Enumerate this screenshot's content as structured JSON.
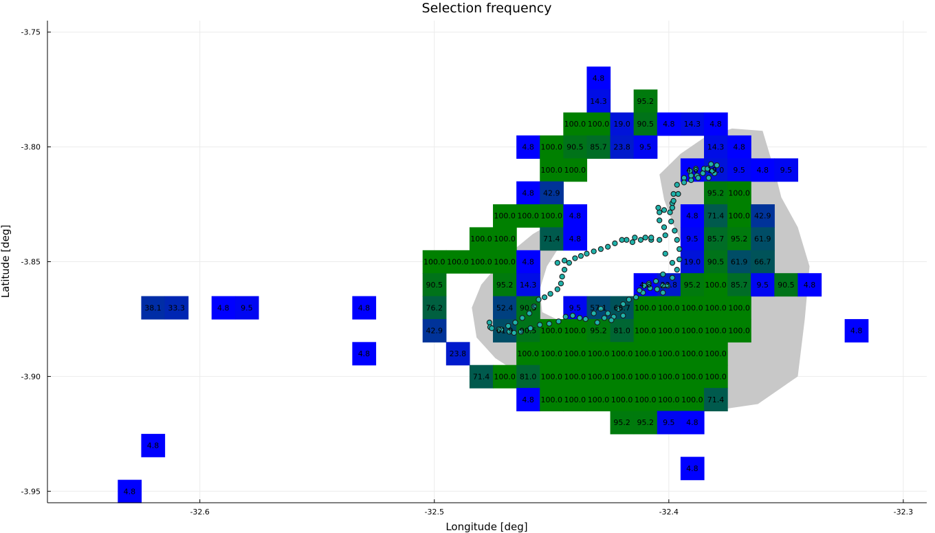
{
  "chart_data": {
    "type": "heatmap",
    "title": "Selection frequency",
    "xlabel": "Longitude [deg]",
    "ylabel": "Latitude [deg]",
    "xlim": [
      -32.665,
      -32.29
    ],
    "ylim": [
      -3.955,
      -3.745
    ],
    "grid": true,
    "legend": "none",
    "x_ticks": [
      {
        "v": -32.6,
        "label": "-32.6"
      },
      {
        "v": -32.5,
        "label": "-32.5"
      },
      {
        "v": -32.4,
        "label": "-32.4"
      },
      {
        "v": -32.3,
        "label": "-32.3"
      }
    ],
    "y_ticks": [
      {
        "v": -3.75,
        "label": "-3.75"
      },
      {
        "v": -3.8,
        "label": "-3.80"
      },
      {
        "v": -3.85,
        "label": "-3.85"
      },
      {
        "v": -3.9,
        "label": "-3.90"
      },
      {
        "v": -3.95,
        "label": "-3.95"
      }
    ],
    "cell_size_deg": 0.01,
    "colors": {
      "low": "#0000ff",
      "high": "#008000",
      "island": "#c8c8c8",
      "track_fill": "#20b2aa",
      "track_edge": "#1a1a1a",
      "grid": "#ebebeb"
    },
    "cells": [
      {
        "lon": -32.43,
        "lat": -3.77,
        "value": "4.8"
      },
      {
        "lon": -32.43,
        "lat": -3.78,
        "value": "14.3"
      },
      {
        "lon": -32.41,
        "lat": -3.78,
        "value": "95.2"
      },
      {
        "lon": -32.44,
        "lat": -3.79,
        "value": "100.0"
      },
      {
        "lon": -32.43,
        "lat": -3.79,
        "value": "100.0"
      },
      {
        "lon": -32.42,
        "lat": -3.79,
        "value": "19.0"
      },
      {
        "lon": -32.41,
        "lat": -3.79,
        "value": "90.5"
      },
      {
        "lon": -32.4,
        "lat": -3.79,
        "value": "4.8"
      },
      {
        "lon": -32.39,
        "lat": -3.79,
        "value": "14.3"
      },
      {
        "lon": -32.38,
        "lat": -3.79,
        "value": "4.8"
      },
      {
        "lon": -32.46,
        "lat": -3.8,
        "value": "4.8"
      },
      {
        "lon": -32.45,
        "lat": -3.8,
        "value": "100.0"
      },
      {
        "lon": -32.44,
        "lat": -3.8,
        "value": "90.5"
      },
      {
        "lon": -32.43,
        "lat": -3.8,
        "value": "85.7"
      },
      {
        "lon": -32.42,
        "lat": -3.8,
        "value": "23.8"
      },
      {
        "lon": -32.41,
        "lat": -3.8,
        "value": "9.5"
      },
      {
        "lon": -32.38,
        "lat": -3.8,
        "value": "14.3"
      },
      {
        "lon": -32.37,
        "lat": -3.8,
        "value": "4.8"
      },
      {
        "lon": -32.45,
        "lat": -3.81,
        "value": "100.0"
      },
      {
        "lon": -32.44,
        "lat": -3.81,
        "value": "100.0"
      },
      {
        "lon": -32.39,
        "lat": -3.81,
        "value": "4.8"
      },
      {
        "lon": -32.38,
        "lat": -3.81,
        "value": "19.0"
      },
      {
        "lon": -32.37,
        "lat": -3.81,
        "value": "9.5"
      },
      {
        "lon": -32.36,
        "lat": -3.81,
        "value": "4.8"
      },
      {
        "lon": -32.35,
        "lat": -3.81,
        "value": "9.5"
      },
      {
        "lon": -32.46,
        "lat": -3.82,
        "value": "4.8"
      },
      {
        "lon": -32.45,
        "lat": -3.82,
        "value": "42.9"
      },
      {
        "lon": -32.38,
        "lat": -3.82,
        "value": "95.2"
      },
      {
        "lon": -32.37,
        "lat": -3.82,
        "value": "100.0"
      },
      {
        "lon": -32.47,
        "lat": -3.83,
        "value": "100.0"
      },
      {
        "lon": -32.46,
        "lat": -3.83,
        "value": "100.0"
      },
      {
        "lon": -32.45,
        "lat": -3.83,
        "value": "100.0"
      },
      {
        "lon": -32.44,
        "lat": -3.83,
        "value": "4.8"
      },
      {
        "lon": -32.39,
        "lat": -3.83,
        "value": "4.8"
      },
      {
        "lon": -32.38,
        "lat": -3.83,
        "value": "71.4"
      },
      {
        "lon": -32.37,
        "lat": -3.83,
        "value": "100.0"
      },
      {
        "lon": -32.36,
        "lat": -3.83,
        "value": "42.9"
      },
      {
        "lon": -32.48,
        "lat": -3.84,
        "value": "100.0"
      },
      {
        "lon": -32.47,
        "lat": -3.84,
        "value": "100.0"
      },
      {
        "lon": -32.45,
        "lat": -3.84,
        "value": "71.4"
      },
      {
        "lon": -32.44,
        "lat": -3.84,
        "value": "4.8"
      },
      {
        "lon": -32.39,
        "lat": -3.84,
        "value": "9.5"
      },
      {
        "lon": -32.38,
        "lat": -3.84,
        "value": "85.7"
      },
      {
        "lon": -32.37,
        "lat": -3.84,
        "value": "95.2"
      },
      {
        "lon": -32.36,
        "lat": -3.84,
        "value": "61.9"
      },
      {
        "lon": -32.5,
        "lat": -3.85,
        "value": "100.0"
      },
      {
        "lon": -32.49,
        "lat": -3.85,
        "value": "100.0"
      },
      {
        "lon": -32.48,
        "lat": -3.85,
        "value": "100.0"
      },
      {
        "lon": -32.47,
        "lat": -3.85,
        "value": "100.0"
      },
      {
        "lon": -32.46,
        "lat": -3.85,
        "value": "4.8"
      },
      {
        "lon": -32.39,
        "lat": -3.85,
        "value": "19.0"
      },
      {
        "lon": -32.38,
        "lat": -3.85,
        "value": "90.5"
      },
      {
        "lon": -32.37,
        "lat": -3.85,
        "value": "61.9"
      },
      {
        "lon": -32.36,
        "lat": -3.85,
        "value": "66.7"
      },
      {
        "lon": -32.5,
        "lat": -3.86,
        "value": "90.5"
      },
      {
        "lon": -32.47,
        "lat": -3.86,
        "value": "95.2"
      },
      {
        "lon": -32.46,
        "lat": -3.86,
        "value": "14.3"
      },
      {
        "lon": -32.41,
        "lat": -3.86,
        "value": "4.8"
      },
      {
        "lon": -32.4,
        "lat": -3.86,
        "value": "23.8"
      },
      {
        "lon": -32.39,
        "lat": -3.86,
        "value": "95.2"
      },
      {
        "lon": -32.38,
        "lat": -3.86,
        "value": "100.0"
      },
      {
        "lon": -32.37,
        "lat": -3.86,
        "value": "85.7"
      },
      {
        "lon": -32.36,
        "lat": -3.86,
        "value": "9.5"
      },
      {
        "lon": -32.35,
        "lat": -3.86,
        "value": "90.5"
      },
      {
        "lon": -32.34,
        "lat": -3.86,
        "value": "4.8"
      },
      {
        "lon": -32.62,
        "lat": -3.87,
        "value": "38.1"
      },
      {
        "lon": -32.61,
        "lat": -3.87,
        "value": "33.3"
      },
      {
        "lon": -32.59,
        "lat": -3.87,
        "value": "4.8"
      },
      {
        "lon": -32.58,
        "lat": -3.87,
        "value": "9.5"
      },
      {
        "lon": -32.53,
        "lat": -3.87,
        "value": "4.8"
      },
      {
        "lon": -32.5,
        "lat": -3.87,
        "value": "76.2"
      },
      {
        "lon": -32.47,
        "lat": -3.87,
        "value": "52.4"
      },
      {
        "lon": -32.46,
        "lat": -3.87,
        "value": "90.5"
      },
      {
        "lon": -32.44,
        "lat": -3.87,
        "value": "9.5"
      },
      {
        "lon": -32.43,
        "lat": -3.87,
        "value": "57.1"
      },
      {
        "lon": -32.42,
        "lat": -3.87,
        "value": "66.7"
      },
      {
        "lon": -32.41,
        "lat": -3.87,
        "value": "100.0"
      },
      {
        "lon": -32.4,
        "lat": -3.87,
        "value": "100.0"
      },
      {
        "lon": -32.39,
        "lat": -3.87,
        "value": "100.0"
      },
      {
        "lon": -32.38,
        "lat": -3.87,
        "value": "100.0"
      },
      {
        "lon": -32.37,
        "lat": -3.87,
        "value": "100.0"
      },
      {
        "lon": -32.5,
        "lat": -3.88,
        "value": "42.9"
      },
      {
        "lon": -32.47,
        "lat": -3.88,
        "value": "61.9"
      },
      {
        "lon": -32.46,
        "lat": -3.88,
        "value": "90.5"
      },
      {
        "lon": -32.45,
        "lat": -3.88,
        "value": "100.0"
      },
      {
        "lon": -32.44,
        "lat": -3.88,
        "value": "100.0"
      },
      {
        "lon": -32.43,
        "lat": -3.88,
        "value": "95.2"
      },
      {
        "lon": -32.42,
        "lat": -3.88,
        "value": "81.0"
      },
      {
        "lon": -32.41,
        "lat": -3.88,
        "value": "100.0"
      },
      {
        "lon": -32.4,
        "lat": -3.88,
        "value": "100.0"
      },
      {
        "lon": -32.39,
        "lat": -3.88,
        "value": "100.0"
      },
      {
        "lon": -32.38,
        "lat": -3.88,
        "value": "100.0"
      },
      {
        "lon": -32.37,
        "lat": -3.88,
        "value": "100.0"
      },
      {
        "lon": -32.32,
        "lat": -3.88,
        "value": "4.8"
      },
      {
        "lon": -32.53,
        "lat": -3.89,
        "value": "4.8"
      },
      {
        "lon": -32.49,
        "lat": -3.89,
        "value": "23.8"
      },
      {
        "lon": -32.46,
        "lat": -3.89,
        "value": "100.0"
      },
      {
        "lon": -32.45,
        "lat": -3.89,
        "value": "100.0"
      },
      {
        "lon": -32.44,
        "lat": -3.89,
        "value": "100.0"
      },
      {
        "lon": -32.43,
        "lat": -3.89,
        "value": "100.0"
      },
      {
        "lon": -32.42,
        "lat": -3.89,
        "value": "100.0"
      },
      {
        "lon": -32.41,
        "lat": -3.89,
        "value": "100.0"
      },
      {
        "lon": -32.4,
        "lat": -3.89,
        "value": "100.0"
      },
      {
        "lon": -32.39,
        "lat": -3.89,
        "value": "100.0"
      },
      {
        "lon": -32.38,
        "lat": -3.89,
        "value": "100.0"
      },
      {
        "lon": -32.48,
        "lat": -3.9,
        "value": "71.4"
      },
      {
        "lon": -32.47,
        "lat": -3.9,
        "value": "100.0"
      },
      {
        "lon": -32.46,
        "lat": -3.9,
        "value": "81.0"
      },
      {
        "lon": -32.45,
        "lat": -3.9,
        "value": "100.0"
      },
      {
        "lon": -32.44,
        "lat": -3.9,
        "value": "100.0"
      },
      {
        "lon": -32.43,
        "lat": -3.9,
        "value": "100.0"
      },
      {
        "lon": -32.42,
        "lat": -3.9,
        "value": "100.0"
      },
      {
        "lon": -32.41,
        "lat": -3.9,
        "value": "100.0"
      },
      {
        "lon": -32.4,
        "lat": -3.9,
        "value": "100.0"
      },
      {
        "lon": -32.39,
        "lat": -3.9,
        "value": "100.0"
      },
      {
        "lon": -32.38,
        "lat": -3.9,
        "value": "100.0"
      },
      {
        "lon": -32.46,
        "lat": -3.91,
        "value": "4.8"
      },
      {
        "lon": -32.45,
        "lat": -3.91,
        "value": "100.0"
      },
      {
        "lon": -32.44,
        "lat": -3.91,
        "value": "100.0"
      },
      {
        "lon": -32.43,
        "lat": -3.91,
        "value": "100.0"
      },
      {
        "lon": -32.42,
        "lat": -3.91,
        "value": "100.0"
      },
      {
        "lon": -32.41,
        "lat": -3.91,
        "value": "100.0"
      },
      {
        "lon": -32.4,
        "lat": -3.91,
        "value": "100.0"
      },
      {
        "lon": -32.39,
        "lat": -3.91,
        "value": "100.0"
      },
      {
        "lon": -32.38,
        "lat": -3.91,
        "value": "71.4"
      },
      {
        "lon": -32.42,
        "lat": -3.92,
        "value": "95.2"
      },
      {
        "lon": -32.41,
        "lat": -3.92,
        "value": "95.2"
      },
      {
        "lon": -32.4,
        "lat": -3.92,
        "value": "9.5"
      },
      {
        "lon": -32.39,
        "lat": -3.92,
        "value": "4.8"
      },
      {
        "lon": -32.62,
        "lat": -3.93,
        "value": "4.8"
      },
      {
        "lon": -32.39,
        "lat": -3.94,
        "value": "4.8"
      },
      {
        "lon": -32.63,
        "lat": -3.95,
        "value": "4.8"
      }
    ],
    "island_outline": [
      [
        -32.395,
        -3.803
      ],
      [
        -32.385,
        -3.796
      ],
      [
        -32.373,
        -3.792
      ],
      [
        -32.36,
        -3.793
      ],
      [
        -32.355,
        -3.81
      ],
      [
        -32.352,
        -3.822
      ],
      [
        -32.345,
        -3.835
      ],
      [
        -32.34,
        -3.852
      ],
      [
        -32.342,
        -3.875
      ],
      [
        -32.345,
        -3.9
      ],
      [
        -32.362,
        -3.912
      ],
      [
        -32.382,
        -3.915
      ],
      [
        -32.41,
        -3.917
      ],
      [
        -32.432,
        -3.912
      ],
      [
        -32.448,
        -3.906
      ],
      [
        -32.462,
        -3.9
      ],
      [
        -32.474,
        -3.892
      ],
      [
        -32.482,
        -3.883
      ],
      [
        -32.484,
        -3.87
      ],
      [
        -32.48,
        -3.86
      ],
      [
        -32.47,
        -3.848
      ],
      [
        -32.458,
        -3.838
      ],
      [
        -32.448,
        -3.832
      ],
      [
        -32.44,
        -3.827
      ],
      [
        -32.441,
        -3.837
      ],
      [
        -32.447,
        -3.844
      ],
      [
        -32.452,
        -3.852
      ],
      [
        -32.455,
        -3.862
      ],
      [
        -32.454,
        -3.872
      ],
      [
        -32.446,
        -3.876
      ],
      [
        -32.432,
        -3.875
      ],
      [
        -32.418,
        -3.873
      ],
      [
        -32.405,
        -3.869
      ],
      [
        -32.396,
        -3.864
      ],
      [
        -32.392,
        -3.856
      ],
      [
        -32.393,
        -3.845
      ],
      [
        -32.398,
        -3.834
      ],
      [
        -32.402,
        -3.823
      ],
      [
        -32.404,
        -3.812
      ]
    ],
    "track": [
      [
        -32.4765,
        -3.8765
      ],
      [
        -32.4762,
        -3.8785
      ],
      [
        -32.4715,
        -3.8795
      ],
      [
        -32.468,
        -3.8805
      ],
      [
        -32.466,
        -3.881
      ],
      [
        -32.463,
        -3.8805
      ],
      [
        -32.459,
        -3.879
      ],
      [
        -32.455,
        -3.8775
      ],
      [
        -32.451,
        -3.877
      ],
      [
        -32.447,
        -3.876
      ],
      [
        -32.444,
        -3.874
      ],
      [
        -32.441,
        -3.8735
      ],
      [
        -32.438,
        -3.8745
      ],
      [
        -32.4355,
        -3.875
      ],
      [
        -32.432,
        -3.8725
      ],
      [
        -32.429,
        -3.8705
      ],
      [
        -32.426,
        -3.8725
      ],
      [
        -32.4235,
        -3.874
      ],
      [
        -32.4215,
        -3.8705
      ],
      [
        -32.4195,
        -3.8685
      ],
      [
        -32.417,
        -3.8665
      ],
      [
        -32.414,
        -3.8655
      ],
      [
        -32.411,
        -3.8635
      ],
      [
        -32.408,
        -3.8615
      ],
      [
        -32.405,
        -3.862
      ],
      [
        -32.4025,
        -3.8635
      ],
      [
        -32.4005,
        -3.8605
      ],
      [
        -32.3985,
        -3.857
      ],
      [
        -32.3965,
        -3.8535
      ],
      [
        -32.3955,
        -3.849
      ],
      [
        -32.3955,
        -3.8445
      ],
      [
        -32.3965,
        -3.8405
      ],
      [
        -32.3975,
        -3.8365
      ],
      [
        -32.399,
        -3.8325
      ],
      [
        -32.3995,
        -3.8285
      ],
      [
        -32.3985,
        -3.8245
      ],
      [
        -32.398,
        -3.8205
      ],
      [
        -32.3965,
        -3.8165
      ],
      [
        -32.3935,
        -3.8135
      ],
      [
        -32.391,
        -3.8105
      ],
      [
        -32.3885,
        -3.8095
      ],
      [
        -32.3855,
        -3.8115
      ],
      [
        -32.383,
        -3.8135
      ],
      [
        -32.3805,
        -3.8115
      ],
      [
        -32.3795,
        -3.808
      ],
      [
        -32.382,
        -3.8075
      ],
      [
        -32.385,
        -3.8095
      ],
      [
        -32.388,
        -3.8125
      ],
      [
        -32.3905,
        -3.8145
      ],
      [
        -32.3935,
        -3.8155
      ],
      [
        -32.396,
        -3.8205
      ],
      [
        -32.398,
        -3.8235
      ],
      [
        -32.3985,
        -3.8265
      ],
      [
        -32.402,
        -3.8275
      ],
      [
        -32.404,
        -3.8285
      ],
      [
        -32.404,
        -3.832
      ],
      [
        -32.402,
        -3.835
      ],
      [
        -32.4015,
        -3.8385
      ],
      [
        -32.404,
        -3.8405
      ],
      [
        -32.4075,
        -3.8405
      ],
      [
        -32.41,
        -3.8395
      ],
      [
        -32.412,
        -3.8405
      ],
      [
        -32.4155,
        -3.8415
      ],
      [
        -32.418,
        -3.8405
      ],
      [
        -32.42,
        -3.8405
      ],
      [
        -32.423,
        -3.842
      ],
      [
        -32.426,
        -3.8435
      ],
      [
        -32.429,
        -3.8445
      ],
      [
        -32.432,
        -3.8455
      ],
      [
        -32.435,
        -3.8465
      ],
      [
        -32.4375,
        -3.8475
      ],
      [
        -32.44,
        -3.8485
      ],
      [
        -32.4425,
        -3.8505
      ],
      [
        -32.4445,
        -3.8535
      ],
      [
        -32.4455,
        -3.8565
      ],
      [
        -32.446,
        -3.8595
      ],
      [
        -32.4475,
        -3.862
      ],
      [
        -32.4505,
        -3.864
      ],
      [
        -32.453,
        -3.8655
      ],
      [
        -32.4555,
        -3.8665
      ],
      [
        -32.4575,
        -3.8695
      ],
      [
        -32.4595,
        -3.8725
      ],
      [
        -32.4625,
        -3.8745
      ],
      [
        -32.4655,
        -3.8765
      ],
      [
        -32.4685,
        -3.878
      ],
      [
        -32.4725,
        -3.8795
      ],
      [
        -32.4755,
        -3.879
      ],
      [
        -32.4475,
        -3.8505
      ],
      [
        -32.4445,
        -3.8495
      ],
      [
        -32.4105,
        -3.8605
      ],
      [
        -32.4085,
        -3.8595
      ],
      [
        -32.4125,
        -3.8625
      ],
      [
        -32.4195,
        -3.8735
      ],
      [
        -32.4245,
        -3.8755
      ],
      [
        -32.4275,
        -3.8745
      ],
      [
        -32.4305,
        -3.8765
      ],
      [
        -32.3835,
        -3.8095
      ],
      [
        -32.3815,
        -3.8105
      ],
      [
        -32.3905,
        -3.8125
      ],
      [
        -32.3875,
        -3.8135
      ],
      [
        -32.4045,
        -3.8265
      ],
      [
        -32.4075,
        -3.8395
      ],
      [
        -32.4145,
        -3.8395
      ],
      [
        -32.4015,
        -3.8465
      ],
      [
        -32.3985,
        -3.8505
      ],
      [
        -32.4025,
        -3.8555
      ],
      [
        -32.4055,
        -3.8585
      ],
      [
        -32.4025,
        -3.8605
      ]
    ]
  }
}
